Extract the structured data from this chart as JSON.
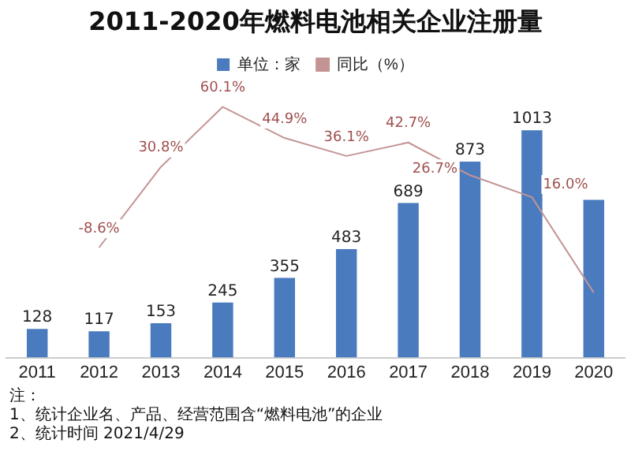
{
  "chart_data": {
    "type": "bar",
    "title": "2011-2020年燃料电池相关企业注册量",
    "categories": [
      "2011",
      "2012",
      "2013",
      "2014",
      "2015",
      "2016",
      "2017",
      "2018",
      "2019",
      "2020"
    ],
    "series": [
      {
        "name": "单位：家",
        "color": "#4a7bbf",
        "values": [
          128,
          117,
          153,
          245,
          355,
          483,
          689,
          873,
          1013,
          703
        ],
        "value_labels": [
          "128",
          "117",
          "153",
          "245",
          "355",
          "483",
          "689",
          "873",
          "1013",
          null
        ]
      },
      {
        "name": "同比（%）",
        "type": "line",
        "axis": "y2",
        "color": "#c49494",
        "values": [
          null,
          -8.6,
          30.8,
          60.1,
          44.9,
          36.1,
          42.7,
          26.7,
          16.0,
          -30.6
        ],
        "value_labels": [
          null,
          "-8.6%",
          "30.8%",
          "60.1%",
          "44.9%",
          "36.1%",
          "42.7%",
          "26.7%",
          "16.0%",
          null
        ]
      }
    ],
    "legend": "top",
    "grid": false,
    "marker": "none",
    "line_style": "solid",
    "annotations": [
      "注：",
      "1、统计企业名、产品、经营范围含“燃料电池”的企业",
      "2、统计时间 2021/4/29"
    ]
  }
}
